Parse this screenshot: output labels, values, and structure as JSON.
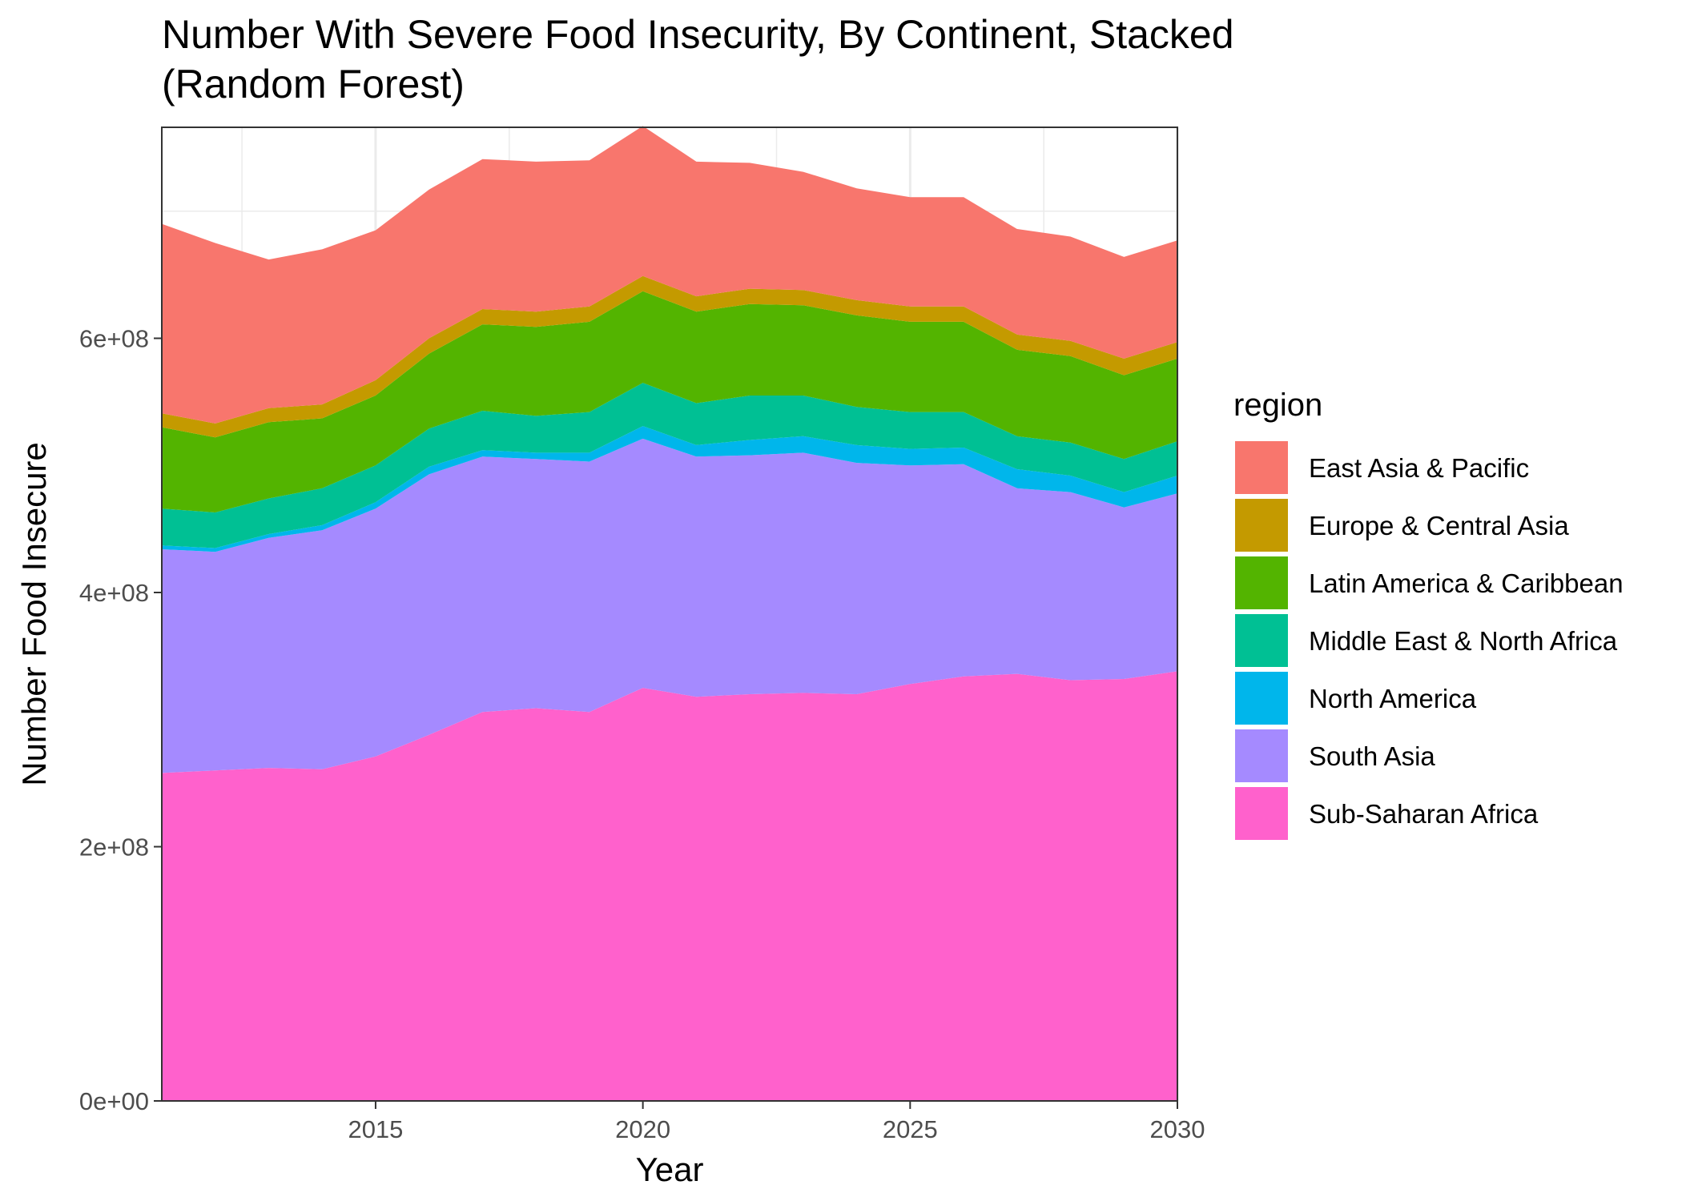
{
  "chart_data": {
    "type": "area",
    "stacked": true,
    "title": "Number With Severe Food Insecurity, By Continent, Stacked",
    "subtitle": "(Random Forest)",
    "xlabel": "Year",
    "ylabel": "Number Food Insecure",
    "xlim": [
      2011,
      2030
    ],
    "ylim": [
      0,
      766000000
    ],
    "x_ticks": [
      2015,
      2020,
      2025,
      2030
    ],
    "y_ticks": [
      0,
      200000000,
      400000000,
      600000000
    ],
    "y_tick_labels": [
      "0e+00",
      "2e+08",
      "4e+08",
      "6e+08"
    ],
    "grid": true,
    "legend": {
      "title": "region",
      "position": "right"
    },
    "x": [
      2011,
      2012,
      2013,
      2014,
      2015,
      2016,
      2017,
      2018,
      2019,
      2020,
      2021,
      2022,
      2023,
      2024,
      2025,
      2026,
      2027,
      2028,
      2029,
      2030
    ],
    "series": [
      {
        "name": "Sub-Saharan Africa",
        "color": "#FF61CC",
        "values": [
          258000000,
          260000000,
          262000000,
          261000000,
          271000000,
          288000000,
          306000000,
          309000000,
          306000000,
          325000000,
          318000000,
          320000000,
          321000000,
          320000000,
          328000000,
          334000000,
          336000000,
          331000000,
          332000000,
          338000000
        ]
      },
      {
        "name": "South Asia",
        "color": "#A58AFF",
        "values": [
          176000000,
          172000000,
          181000000,
          188000000,
          195000000,
          205000000,
          201000000,
          196000000,
          197000000,
          196000000,
          189000000,
          188000000,
          189000000,
          182000000,
          172000000,
          167000000,
          146000000,
          148000000,
          135000000,
          140000000
        ]
      },
      {
        "name": "North America",
        "color": "#00B6EB",
        "values": [
          3000000,
          3000000,
          3000000,
          4000000,
          5000000,
          6000000,
          5000000,
          5000000,
          7000000,
          10000000,
          9000000,
          12000000,
          13000000,
          14000000,
          13000000,
          13000000,
          15000000,
          13000000,
          12000000,
          14000000
        ]
      },
      {
        "name": "Middle East & North Africa",
        "color": "#00C094",
        "values": [
          29000000,
          28000000,
          28000000,
          29000000,
          29000000,
          30000000,
          31000000,
          29000000,
          32000000,
          34000000,
          33000000,
          35000000,
          32000000,
          30000000,
          29000000,
          28000000,
          26000000,
          26000000,
          26000000,
          27000000
        ]
      },
      {
        "name": "Latin America & Caribbean",
        "color": "#53B400",
        "values": [
          64000000,
          59000000,
          60000000,
          55000000,
          55000000,
          59000000,
          68000000,
          70000000,
          71000000,
          72000000,
          72000000,
          72000000,
          71000000,
          72000000,
          71000000,
          71000000,
          68000000,
          68000000,
          66000000,
          65000000
        ]
      },
      {
        "name": "Europe & Central Asia",
        "color": "#C49A00",
        "values": [
          11000000,
          11000000,
          11000000,
          11000000,
          12000000,
          12000000,
          12000000,
          12000000,
          12000000,
          12000000,
          12000000,
          12000000,
          12000000,
          12000000,
          12000000,
          12000000,
          12000000,
          12000000,
          13000000,
          13000000
        ]
      },
      {
        "name": "East Asia & Pacific",
        "color": "#F8766D",
        "values": [
          149000000,
          142000000,
          117000000,
          122000000,
          118000000,
          117000000,
          118000000,
          118000000,
          115000000,
          118000000,
          106000000,
          99000000,
          93000000,
          88000000,
          86000000,
          86000000,
          83000000,
          82000000,
          80000000,
          80000000
        ]
      }
    ]
  }
}
